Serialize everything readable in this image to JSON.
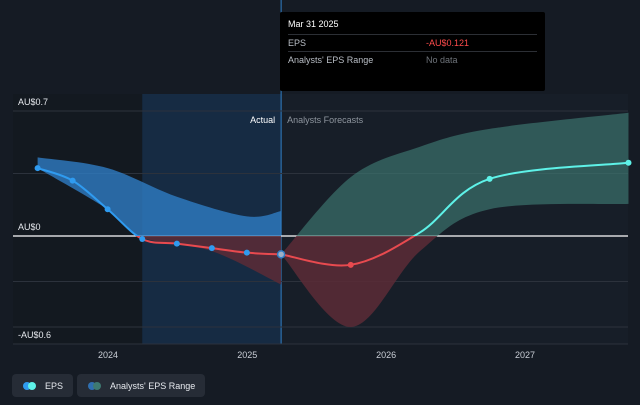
{
  "chart_data": {
    "type": "line",
    "y_axis_labels": {
      "top": "AU$0.7",
      "zero": "AU$0",
      "bottom": "-AU$0.6"
    },
    "ylim": [
      -0.6,
      0.7
    ],
    "x_ticks": [
      "2024",
      "2025",
      "2026",
      "2027"
    ],
    "region_labels": {
      "actual": "Actual",
      "forecast": "Analysts Forecasts"
    },
    "series": [
      {
        "name": "EPS",
        "kind": "actual",
        "points": [
          {
            "x": "2023-06-30",
            "y": 0.38
          },
          {
            "x": "2023-09-30",
            "y": 0.31
          },
          {
            "x": "2023-12-31",
            "y": 0.15
          },
          {
            "x": "2024-03-31",
            "y": -0.02
          },
          {
            "x": "2024-06-30",
            "y": -0.05
          },
          {
            "x": "2024-09-30",
            "y": -0.08
          },
          {
            "x": "2024-12-31",
            "y": -0.11
          },
          {
            "x": "2025-03-31",
            "y": -0.121
          }
        ]
      },
      {
        "name": "EPS",
        "kind": "forecast",
        "points": [
          {
            "x": "2025-03-31",
            "y": -0.121
          },
          {
            "x": "2025-09-30",
            "y": -0.19
          },
          {
            "x": "2026-03-31",
            "y": 0.02
          },
          {
            "x": "2026-09-30",
            "y": 0.32
          },
          {
            "x": "2027-09-30",
            "y": 0.41
          }
        ],
        "marker_dates": [
          "2025-03-31",
          "2025-09-30",
          "2026-09-30",
          "2027-09-30"
        ]
      }
    ],
    "range_bands": [
      {
        "name": "Analysts' EPS Range",
        "kind": "actual",
        "upper": [
          {
            "x": "2023-06-30",
            "y": 0.44
          },
          {
            "x": "2023-12-31",
            "y": 0.38
          },
          {
            "x": "2024-06-30",
            "y": 0.22
          },
          {
            "x": "2024-12-31",
            "y": 0.11
          },
          {
            "x": "2025-03-31",
            "y": 0.14
          }
        ],
        "lower": [
          {
            "x": "2023-06-30",
            "y": 0.38
          },
          {
            "x": "2023-12-31",
            "y": 0.15
          },
          {
            "x": "2024-03-31",
            "y": -0.01
          },
          {
            "x": "2024-09-30",
            "y": -0.1
          },
          {
            "x": "2025-03-31",
            "y": -0.32
          }
        ]
      },
      {
        "name": "Analysts' EPS Range",
        "kind": "forecast",
        "upper": [
          {
            "x": "2025-03-31",
            "y": -0.121
          },
          {
            "x": "2025-09-30",
            "y": 0.33
          },
          {
            "x": "2026-03-31",
            "y": 0.5
          },
          {
            "x": "2026-09-30",
            "y": 0.6
          },
          {
            "x": "2027-09-30",
            "y": 0.69
          }
        ],
        "lower": [
          {
            "x": "2025-03-31",
            "y": -0.121
          },
          {
            "x": "2025-09-30",
            "y": -0.6
          },
          {
            "x": "2026-03-31",
            "y": -0.1
          },
          {
            "x": "2026-09-30",
            "y": 0.15
          },
          {
            "x": "2027-09-30",
            "y": 0.18
          }
        ]
      }
    ],
    "highlight": {
      "start": "2024-03-31",
      "end": "2025-03-31"
    },
    "colors": {
      "eps_actual": "#2f9bf0",
      "eps_forecast": "#e84a4f",
      "eps_forecast_positive": "#5ef2e8",
      "band_actual": "#2f7fc8",
      "band_forecast_positive": "#3e7a72",
      "band_forecast_negative": "#5c2b36",
      "zero_line": "#ffffff",
      "grid": "#2c323c"
    }
  },
  "tooltip": {
    "title": "Mar 31 2025",
    "rows": [
      {
        "label": "EPS",
        "value": "-AU$0.121"
      },
      {
        "label": "Analysts' EPS Range",
        "value": "No data"
      }
    ]
  },
  "legend": {
    "items": [
      {
        "label": "EPS",
        "color_a": "#2f9bf0",
        "color_b": "#5ef2e8"
      },
      {
        "label": "Analysts' EPS Range",
        "color_a": "#2f6fb0",
        "color_b": "#3e7a72"
      }
    ]
  }
}
